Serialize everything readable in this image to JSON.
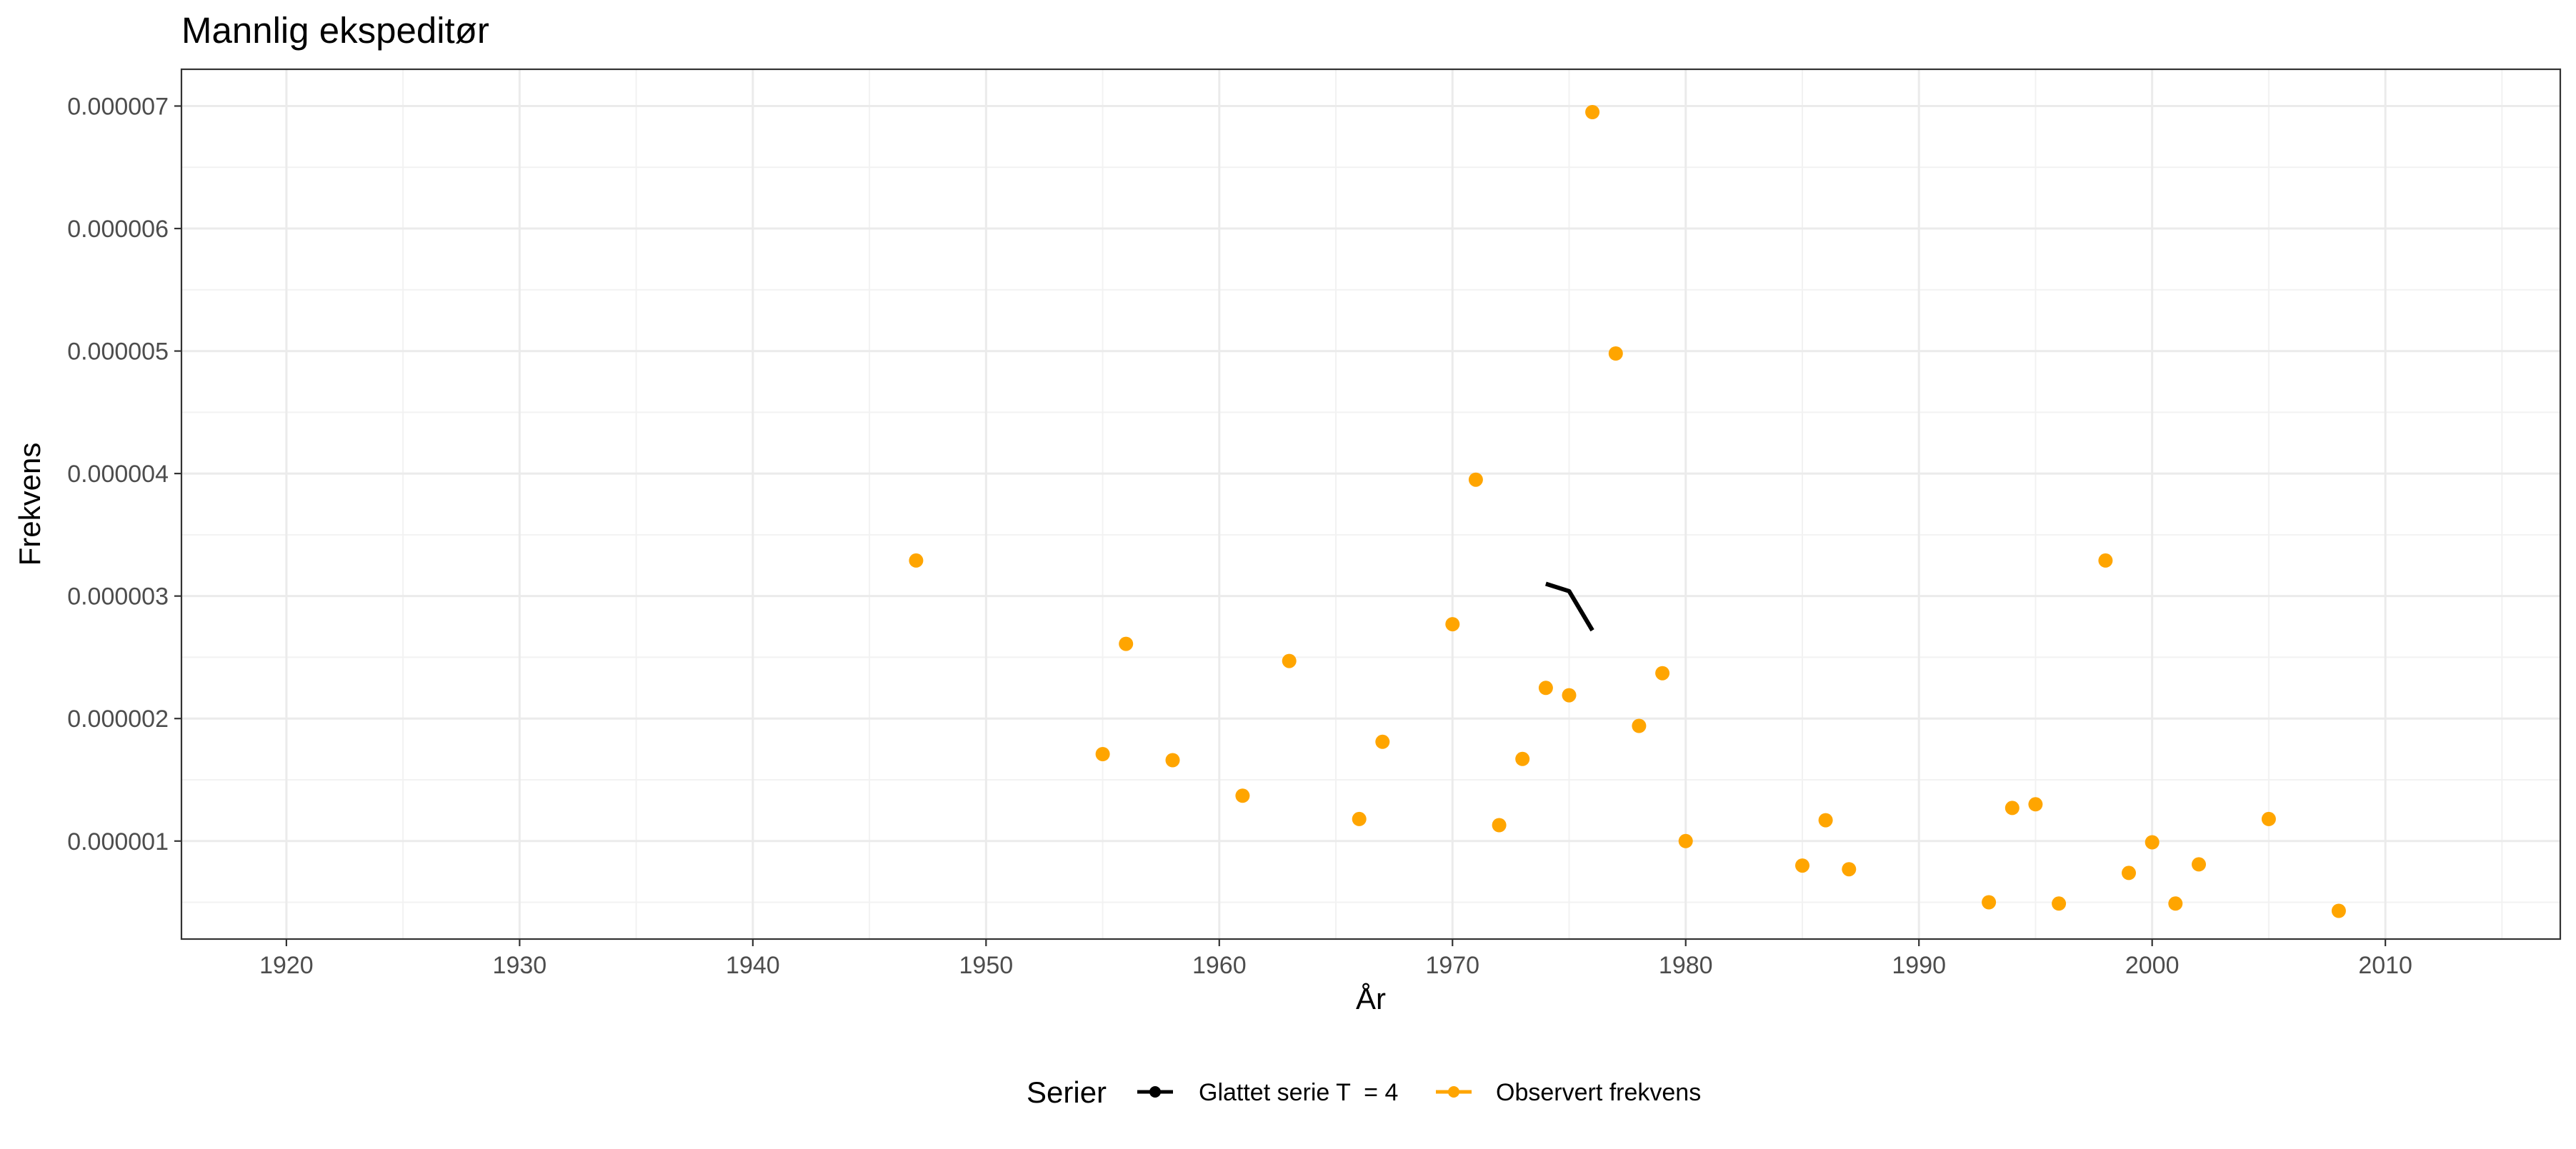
{
  "chart_data": {
    "type": "scatter",
    "title": "Mannlig ekspeditør",
    "xlabel": "År",
    "ylabel": "Frekvens",
    "xlim": [
      1915.5,
      2017.5
    ],
    "ylim": [
      2e-07,
      7.3e-06
    ],
    "x_ticks": [
      1920,
      1930,
      1940,
      1950,
      1960,
      1970,
      1980,
      1990,
      2000,
      2010
    ],
    "x_tick_labels": [
      "1920",
      "1930",
      "1940",
      "1950",
      "1960",
      "1970",
      "1980",
      "1990",
      "2000",
      "2010"
    ],
    "y_ticks": [
      1e-06,
      2e-06,
      3e-06,
      4e-06,
      5e-06,
      6e-06,
      7e-06
    ],
    "y_tick_labels": [
      "0.000001",
      "0.000002",
      "0.000003",
      "0.000004",
      "0.000005",
      "0.000006",
      "0.000007"
    ],
    "grid": true,
    "legend_placement": "bottom",
    "legend_title": "Serier",
    "series": [
      {
        "name": "Glattet serie T  = 4",
        "kind": "line",
        "color": "#000000",
        "points": [
          [
            1974,
            3.1e-06
          ],
          [
            1975,
            3.04e-06
          ],
          [
            1976,
            2.72e-06
          ]
        ]
      },
      {
        "name": "Observert frekvens",
        "kind": "points",
        "color": "#FFA500",
        "points": [
          [
            1947,
            3.29e-06
          ],
          [
            1955,
            1.71e-06
          ],
          [
            1956,
            2.61e-06
          ],
          [
            1958,
            1.66e-06
          ],
          [
            1961,
            1.37e-06
          ],
          [
            1963,
            2.47e-06
          ],
          [
            1966,
            1.18e-06
          ],
          [
            1967,
            1.81e-06
          ],
          [
            1970,
            2.77e-06
          ],
          [
            1971,
            3.95e-06
          ],
          [
            1972,
            1.13e-06
          ],
          [
            1973,
            1.67e-06
          ],
          [
            1974,
            2.25e-06
          ],
          [
            1975,
            2.19e-06
          ],
          [
            1976,
            6.95e-06
          ],
          [
            1977,
            4.98e-06
          ],
          [
            1978,
            1.94e-06
          ],
          [
            1979,
            2.37e-06
          ],
          [
            1980,
            1e-06
          ],
          [
            1985,
            8e-07
          ],
          [
            1986,
            1.17e-06
          ],
          [
            1987,
            7.7e-07
          ],
          [
            1993,
            5e-07
          ],
          [
            1994,
            1.27e-06
          ],
          [
            1995,
            1.3e-06
          ],
          [
            1996,
            4.9e-07
          ],
          [
            1998,
            3.29e-06
          ],
          [
            1999,
            7.4e-07
          ],
          [
            2000,
            9.9e-07
          ],
          [
            2001,
            4.9e-07
          ],
          [
            2002,
            8.1e-07
          ],
          [
            2005,
            1.18e-06
          ],
          [
            2008,
            4.3e-07
          ]
        ]
      }
    ]
  }
}
